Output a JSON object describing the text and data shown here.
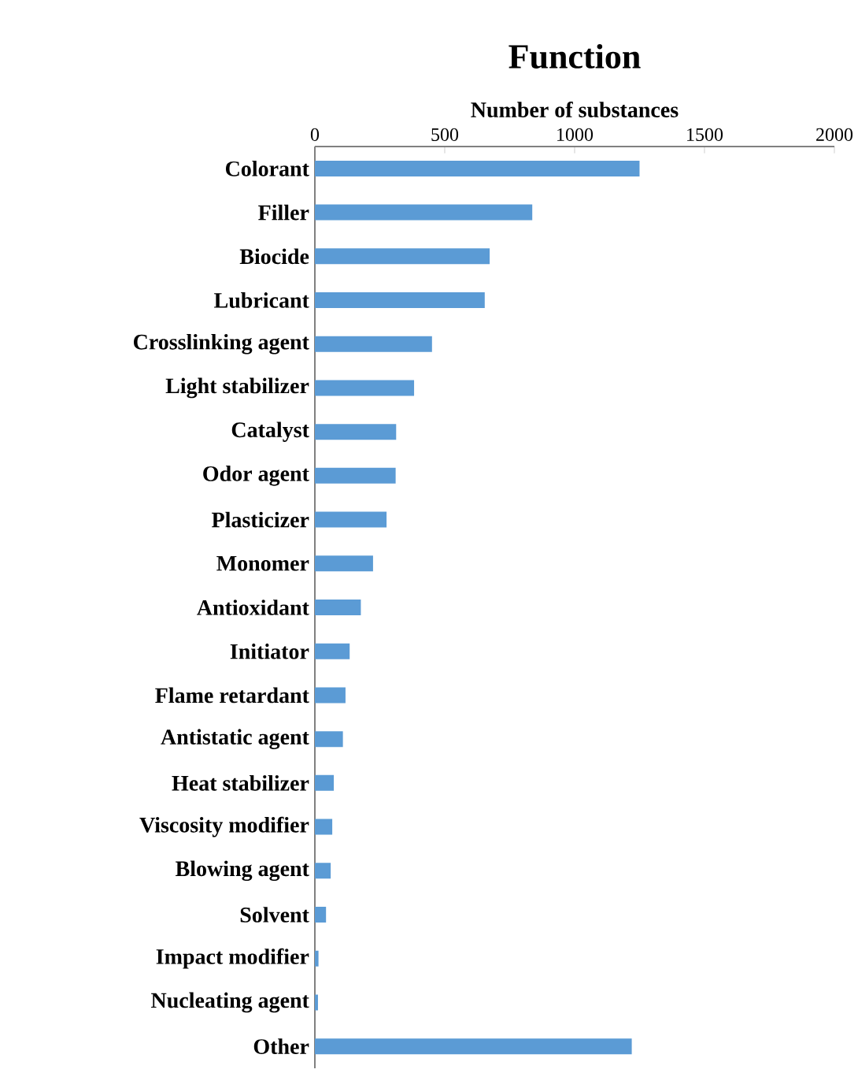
{
  "chart_data": {
    "type": "bar",
    "orientation": "horizontal",
    "title": "Function",
    "xlabel": "Number of substances",
    "categories": [
      "Colorant",
      "Filler",
      "Biocide",
      "Lubricant",
      "Crosslinking agent",
      "Light stabilizer",
      "Catalyst",
      "Odor agent",
      "Plasticizer",
      "Monomer",
      "Antioxidant",
      "Initiator",
      "Flame retardant",
      "Antistatic agent",
      "Heat stabilizer",
      "Viscosity modifier",
      "Blowing agent",
      "Solvent",
      "Impact modifier",
      "Nucleating agent",
      "Other"
    ],
    "values": [
      1250,
      837,
      673,
      654,
      451,
      382,
      313,
      311,
      276,
      224,
      177,
      134,
      118,
      108,
      73,
      67,
      61,
      43,
      14,
      12,
      1220
    ],
    "color": "#5b9bd5",
    "xlim": [
      0,
      2000
    ],
    "xticks": [
      0,
      500,
      1000,
      1500,
      2000
    ]
  }
}
